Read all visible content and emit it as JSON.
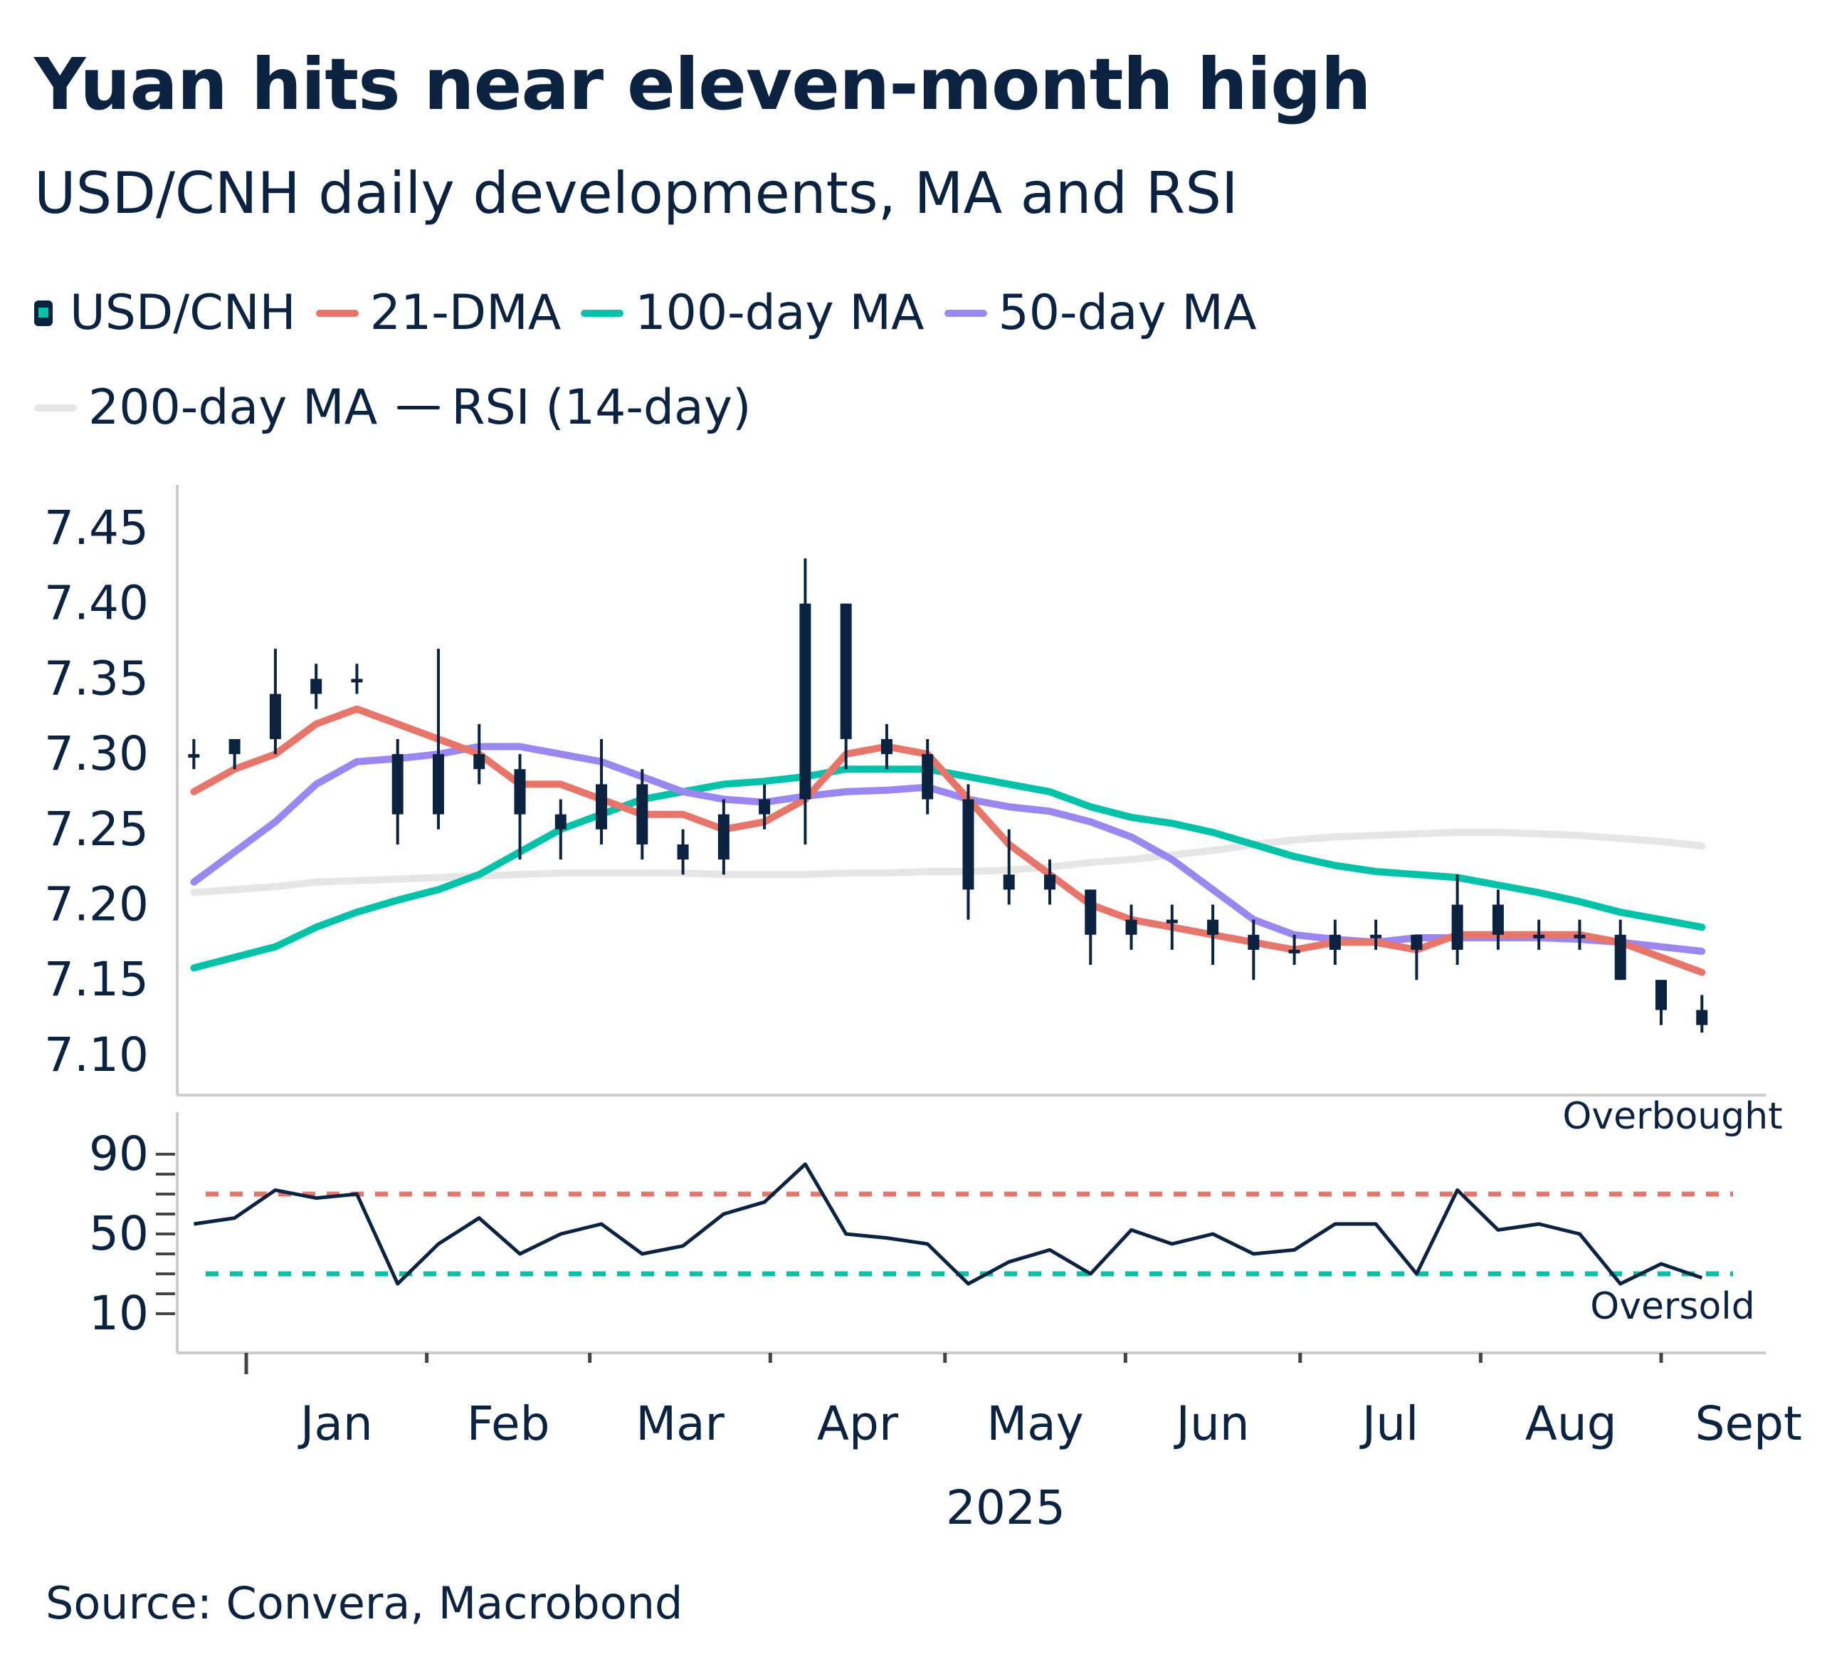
{
  "title": "Yuan hits near eleven-month high",
  "subtitle": "USD/CNH daily developments, MA and RSI",
  "source": "Source: Convera, Macrobond",
  "legend": [
    {
      "label": "USD/CNH",
      "color": "#0b2341",
      "type": "candlestick"
    },
    {
      "label": "21-DMA",
      "color": "#e8756a"
    },
    {
      "label": "100-day MA",
      "color": "#00c2a8"
    },
    {
      "label": "50-day MA",
      "color": "#9b87f0"
    },
    {
      "label": "200-day MA",
      "color": "#e6e6e6"
    },
    {
      "label": "RSI (14-day)",
      "color": "#0b2341"
    }
  ],
  "chart_data": [
    {
      "type": "candlestick",
      "panel": "price",
      "ylim": [
        7.08,
        7.48
      ],
      "yticks": [
        "7.10",
        "7.15",
        "7.20",
        "7.25",
        "7.30",
        "7.35",
        "7.40",
        "7.45"
      ],
      "x": [
        "2024-12-23",
        "2024-12-30",
        "2025-01-06",
        "2025-01-13",
        "2025-01-20",
        "2025-01-27",
        "2025-02-03",
        "2025-02-10",
        "2025-02-17",
        "2025-02-24",
        "2025-03-03",
        "2025-03-10",
        "2025-03-17",
        "2025-03-24",
        "2025-03-31",
        "2025-04-07",
        "2025-04-14",
        "2025-04-21",
        "2025-04-28",
        "2025-05-05",
        "2025-05-12",
        "2025-05-19",
        "2025-05-26",
        "2025-06-02",
        "2025-06-09",
        "2025-06-16",
        "2025-06-23",
        "2025-06-30",
        "2025-07-07",
        "2025-07-14",
        "2025-07-21",
        "2025-07-28",
        "2025-08-04",
        "2025-08-11",
        "2025-08-18",
        "2025-08-25",
        "2025-09-01",
        "2025-09-08"
      ],
      "series": [
        {
          "name": "USD/CNH",
          "open": [
            7.3,
            7.3,
            7.31,
            7.34,
            7.35,
            7.3,
            7.26,
            7.3,
            7.29,
            7.26,
            7.25,
            7.28,
            7.24,
            7.23,
            7.26,
            7.27,
            7.4,
            7.31,
            7.3,
            7.27,
            7.21,
            7.22,
            7.21,
            7.18,
            7.19,
            7.19,
            7.18,
            7.17,
            7.17,
            7.18,
            7.18,
            7.17,
            7.2,
            7.18,
            7.18,
            7.18,
            7.15,
            7.13
          ],
          "high": [
            7.31,
            7.31,
            7.37,
            7.36,
            7.36,
            7.31,
            7.37,
            7.32,
            7.3,
            7.27,
            7.31,
            7.29,
            7.25,
            7.27,
            7.28,
            7.43,
            7.4,
            7.32,
            7.31,
            7.28,
            7.25,
            7.23,
            7.21,
            7.2,
            7.2,
            7.2,
            7.19,
            7.18,
            7.19,
            7.19,
            7.18,
            7.22,
            7.21,
            7.19,
            7.19,
            7.19,
            7.15,
            7.14
          ],
          "low": [
            7.29,
            7.29,
            7.3,
            7.33,
            7.34,
            7.24,
            7.25,
            7.28,
            7.23,
            7.23,
            7.24,
            7.23,
            7.22,
            7.22,
            7.25,
            7.24,
            7.29,
            7.29,
            7.26,
            7.19,
            7.2,
            7.2,
            7.16,
            7.17,
            7.17,
            7.16,
            7.15,
            7.16,
            7.16,
            7.17,
            7.15,
            7.16,
            7.17,
            7.17,
            7.17,
            7.15,
            7.12,
            7.115
          ],
          "close": [
            7.3,
            7.31,
            7.34,
            7.35,
            7.35,
            7.26,
            7.3,
            7.29,
            7.26,
            7.25,
            7.28,
            7.24,
            7.23,
            7.26,
            7.27,
            7.4,
            7.31,
            7.3,
            7.27,
            7.21,
            7.22,
            7.21,
            7.18,
            7.19,
            7.19,
            7.18,
            7.17,
            7.17,
            7.18,
            7.18,
            7.17,
            7.2,
            7.18,
            7.18,
            7.18,
            7.15,
            7.13,
            7.12
          ]
        },
        {
          "name": "21-DMA",
          "values": [
            7.275,
            7.29,
            7.3,
            7.32,
            7.33,
            7.32,
            7.31,
            7.3,
            7.28,
            7.28,
            7.27,
            7.26,
            7.26,
            7.25,
            7.255,
            7.27,
            7.3,
            7.305,
            7.3,
            7.27,
            7.24,
            7.22,
            7.2,
            7.19,
            7.185,
            7.18,
            7.175,
            7.17,
            7.175,
            7.175,
            7.17,
            7.18,
            7.18,
            7.18,
            7.18,
            7.175,
            7.165,
            7.155
          ]
        },
        {
          "name": "100-day MA",
          "values": [
            7.158,
            7.165,
            7.172,
            7.185,
            7.195,
            7.203,
            7.21,
            7.22,
            7.235,
            7.25,
            7.26,
            7.27,
            7.275,
            7.28,
            7.282,
            7.285,
            7.29,
            7.29,
            7.29,
            7.285,
            7.28,
            7.275,
            7.265,
            7.258,
            7.254,
            7.248,
            7.24,
            7.232,
            7.226,
            7.222,
            7.22,
            7.218,
            7.213,
            7.208,
            7.202,
            7.195,
            7.19,
            7.185
          ]
        },
        {
          "name": "50-day MA",
          "values": [
            7.215,
            7.235,
            7.255,
            7.28,
            7.295,
            7.297,
            7.3,
            7.305,
            7.305,
            7.3,
            7.295,
            7.285,
            7.275,
            7.27,
            7.268,
            7.272,
            7.275,
            7.276,
            7.278,
            7.27,
            7.265,
            7.262,
            7.255,
            7.245,
            7.23,
            7.21,
            7.19,
            7.18,
            7.177,
            7.175,
            7.178,
            7.178,
            7.178,
            7.178,
            7.177,
            7.175,
            7.172,
            7.169
          ]
        },
        {
          "name": "200-day MA",
          "values": [
            7.208,
            7.21,
            7.212,
            7.215,
            7.216,
            7.217,
            7.218,
            7.219,
            7.22,
            7.221,
            7.221,
            7.221,
            7.221,
            7.22,
            7.22,
            7.22,
            7.221,
            7.221,
            7.222,
            7.222,
            7.223,
            7.225,
            7.228,
            7.23,
            7.233,
            7.236,
            7.24,
            7.243,
            7.245,
            7.246,
            7.247,
            7.248,
            7.248,
            7.247,
            7.246,
            7.244,
            7.242,
            7.239
          ]
        }
      ]
    },
    {
      "type": "line",
      "panel": "rsi",
      "ylim": [
        0,
        100
      ],
      "yticks": [
        "10",
        "50",
        "90"
      ],
      "reference_lines": [
        {
          "label": "Overbought",
          "value": 70,
          "color": "#e8756a"
        },
        {
          "label": "Oversold",
          "value": 30,
          "color": "#00c2a8"
        }
      ],
      "series": [
        {
          "name": "RSI (14-day)",
          "values": [
            55,
            58,
            72,
            68,
            70,
            25,
            45,
            58,
            40,
            50,
            55,
            40,
            44,
            60,
            66,
            85,
            50,
            48,
            45,
            25,
            36,
            42,
            30,
            52,
            45,
            50,
            40,
            42,
            55,
            55,
            30,
            72,
            52,
            55,
            50,
            25,
            35,
            28
          ]
        }
      ]
    }
  ],
  "xaxis": {
    "months": [
      "Jan",
      "Feb",
      "Mar",
      "Apr",
      "May",
      "Jun",
      "Jul",
      "Aug",
      "Sept"
    ],
    "year": "2025"
  }
}
